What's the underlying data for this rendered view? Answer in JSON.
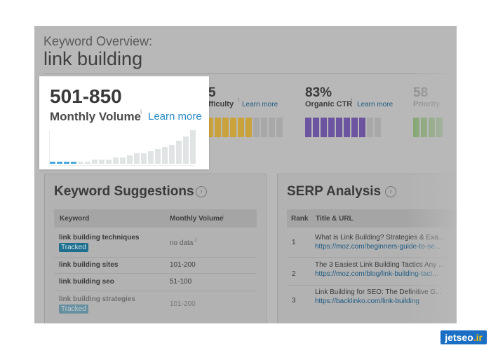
{
  "header": {
    "subtitle": "Keyword Overview:",
    "keyword": "link building"
  },
  "popup": {
    "volume": "501-850",
    "label": "Monthly Volume",
    "info": "i",
    "learn_more": "Learn more",
    "trend_values": [
      1,
      1,
      1,
      1,
      1,
      1,
      2,
      2,
      2,
      3,
      3,
      4,
      5,
      5,
      6,
      7,
      8,
      9,
      11,
      13,
      16
    ],
    "highlight_count": 4,
    "colors": {
      "highlight": "#4aa8da",
      "bar": "#e0e4e5"
    }
  },
  "metrics": {
    "difficulty": {
      "value": "5",
      "label": "fficulty",
      "info": "i",
      "link": "Learn more",
      "filled": 6,
      "total": 10,
      "color": "#c9a23c",
      "empty_color": "#a8a8a8"
    },
    "ctr": {
      "value": "83%",
      "label": "Organic CTR",
      "info": "i",
      "link": "Learn more",
      "filled": 8,
      "total": 10,
      "color": "#6c54a0",
      "empty_color": "#a8a8a8"
    },
    "priority": {
      "value": "58",
      "label": "Priority",
      "filled": 4,
      "total": 4,
      "color": "#7fa56a"
    }
  },
  "suggestions": {
    "title": "Keyword Suggestions",
    "chevron": "›",
    "col_keyword": "Keyword",
    "col_volume": "Monthly Volume",
    "info": "i",
    "rows": [
      {
        "keyword": "link building techniques",
        "tag": "Tracked",
        "volume": "no data",
        "info": "i"
      },
      {
        "keyword": "link building sites",
        "volume": "101-200"
      },
      {
        "keyword": "link building seo",
        "volume": "51-100"
      },
      {
        "keyword": "link building strategies",
        "tag": "Tracked",
        "volume": "101-200"
      }
    ]
  },
  "serp": {
    "title": "SERP Analysis",
    "chevron": "›",
    "col_rank": "Rank",
    "col_title": "Title & URL",
    "rows": [
      {
        "rank": "1",
        "title": "What is Link Building? Strategies & Exa...",
        "url": "https://moz.com/beginners-guide-to-se..."
      },
      {
        "rank": "2",
        "title": "The 3 Easiest Link Building Tactics Any ...",
        "url": "https://moz.com/blog/link-building-tact..."
      },
      {
        "rank": "3",
        "title": "Link Building for SEO: The Definitive G...",
        "url": "https://backlinko.com/link-building"
      }
    ]
  },
  "watermark": {
    "name": "jetseo",
    "dot": ".",
    "suffix": "ir"
  }
}
